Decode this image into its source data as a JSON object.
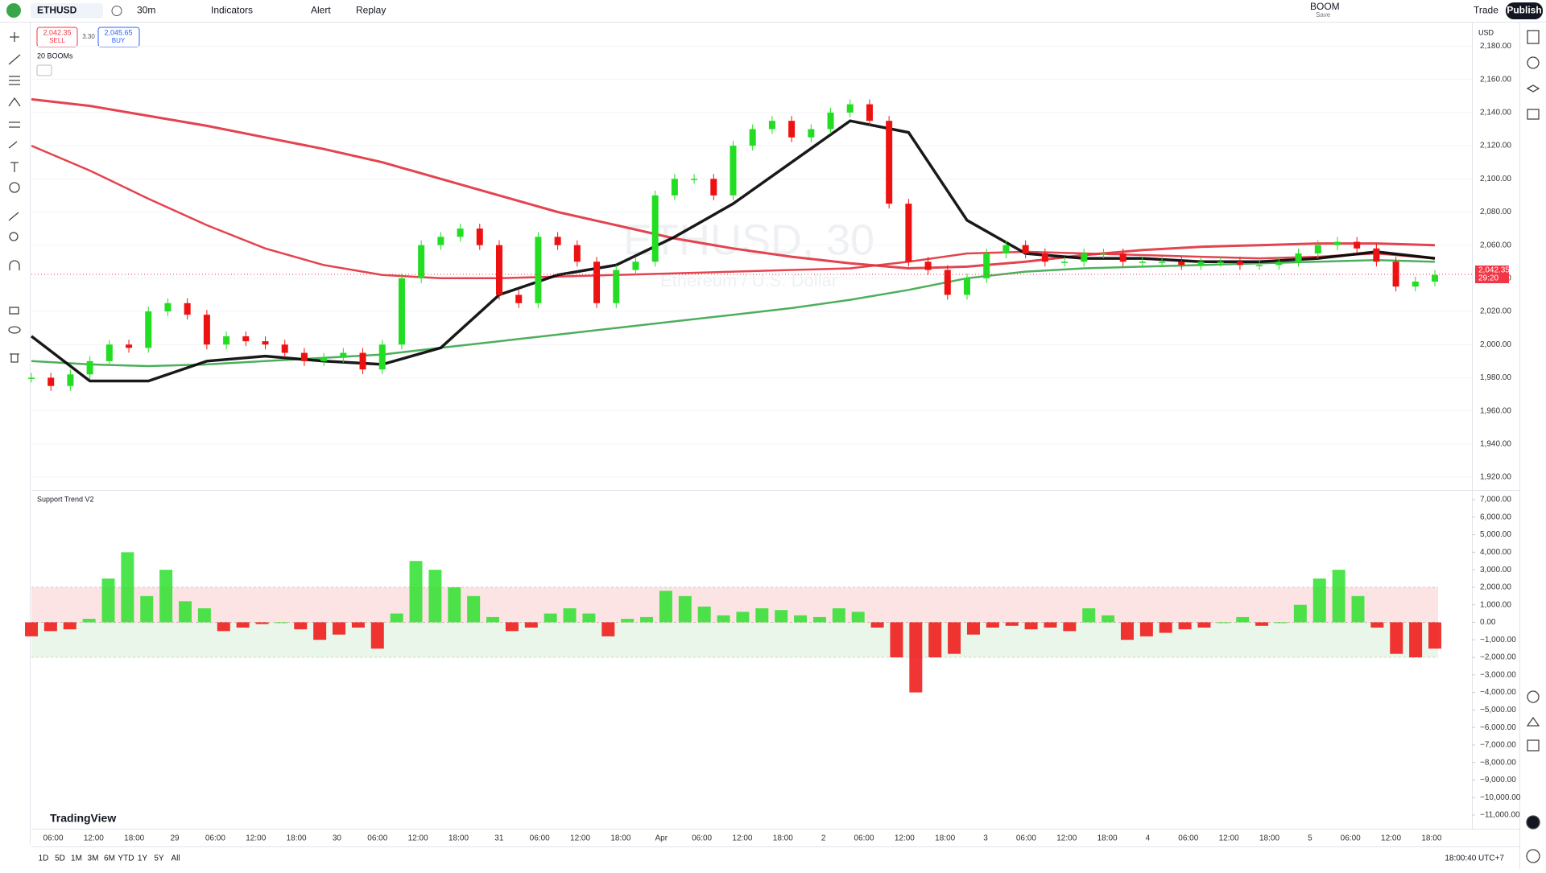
{
  "toolbar": {
    "symbol": "ETHUSD",
    "interval": "30m",
    "indicators": "Indicators",
    "alert": "Alert",
    "replay": "Replay",
    "layout": "BOOM",
    "layout_status": "Save",
    "trade": "Trade",
    "publish": "Publish"
  },
  "order_panel": {
    "sell_price": "2,042.35",
    "sell": "SELL",
    "spread": "3.30",
    "buy_price": "2,045.65",
    "buy": "BUY",
    "indicator_legend": "20 BOOMs"
  },
  "chart": {
    "watermark_symbol": "ETHUSD, 30",
    "watermark_name": "Ethereum / U.S. Dollar",
    "currency": "USD",
    "ylim": [
      1920,
      2180
    ],
    "yticks": [
      {
        "value": 2180,
        "label": "2,180.00"
      },
      {
        "value": 2160,
        "label": "2,160.00"
      },
      {
        "value": 2140,
        "label": "2,140.00"
      },
      {
        "value": 2120,
        "label": "2,120.00"
      },
      {
        "value": 2100,
        "label": "2,100.00"
      },
      {
        "value": 2080,
        "label": "2,080.00"
      },
      {
        "value": 2060,
        "label": "2,060.00"
      },
      {
        "value": 2040,
        "label": "2,040.00"
      },
      {
        "value": 2020,
        "label": "2,020.00"
      },
      {
        "value": 2000,
        "label": "2,000.00"
      },
      {
        "value": 1980,
        "label": "1,980.00"
      },
      {
        "value": 1960,
        "label": "1,960.00"
      },
      {
        "value": 1940,
        "label": "1,940.00"
      },
      {
        "value": 1920,
        "label": "1,920.00"
      }
    ],
    "last_price": {
      "value": 2042.35,
      "label": "2,042.35"
    },
    "countdown": "29:20",
    "candles": {
      "up_color": "#22dd22",
      "down_color": "#ee1111",
      "values": [
        1980,
        1975,
        1982,
        1990,
        2000,
        1998,
        2020,
        2025,
        2018,
        2000,
        2005,
        2002,
        2000,
        1995,
        1990,
        1992,
        1995,
        1985,
        2000,
        2040,
        2060,
        2065,
        2070,
        2060,
        2030,
        2025,
        2065,
        2060,
        2050,
        2025,
        2045,
        2050,
        2090,
        2100,
        2100,
        2090,
        2120,
        2130,
        2135,
        2125,
        2130,
        2140,
        2145,
        2135,
        2085,
        2050,
        2045,
        2030,
        2040,
        2055,
        2060,
        2055,
        2050,
        2050,
        2055,
        2055,
        2050,
        2050,
        2050,
        2048,
        2050,
        2050,
        2048,
        2048,
        2050,
        2055,
        2060,
        2062,
        2058,
        2050,
        2035,
        2038,
        2042
      ]
    },
    "lines": [
      {
        "color": "#e0303c",
        "width": 3,
        "values": [
          2148,
          2144,
          2138,
          2132,
          2125,
          2118,
          2110,
          2100,
          2090,
          2080,
          2072,
          2064,
          2058,
          2053,
          2049,
          2046,
          2047,
          2050,
          2054,
          2057,
          2059,
          2060,
          2061,
          2061,
          2060
        ]
      },
      {
        "color": "#e0303c",
        "width": 2.5,
        "values": [
          2120,
          2105,
          2088,
          2072,
          2058,
          2048,
          2042,
          2040,
          2040,
          2041,
          2042,
          2043,
          2044,
          2045,
          2046,
          2050,
          2055,
          2056,
          2055,
          2054,
          2053,
          2052,
          2053,
          2055,
          2052
        ]
      },
      {
        "color": "#3aa64a",
        "width": 2.5,
        "values": [
          1990,
          1988,
          1987,
          1988,
          1990,
          1992,
          1994,
          1998,
          2002,
          2006,
          2010,
          2014,
          2018,
          2022,
          2027,
          2033,
          2040,
          2044,
          2046,
          2047,
          2048,
          2049,
          2050,
          2051,
          2050
        ]
      },
      {
        "color": "#000000",
        "width": 3.5,
        "values": [
          2005,
          1978,
          1978,
          1990,
          1993,
          1990,
          1988,
          1998,
          2030,
          2042,
          2048,
          2065,
          2085,
          2110,
          2135,
          2128,
          2075,
          2055,
          2052,
          2052,
          2050,
          2050,
          2052,
          2056,
          2052
        ]
      }
    ],
    "time_labels": [
      "06:00",
      "12:00",
      "18:00",
      "29",
      "06:00",
      "12:00",
      "18:00",
      "30",
      "06:00",
      "12:00",
      "18:00",
      "31",
      "06:00",
      "12:00",
      "18:00",
      "Apr",
      "06:00",
      "12:00",
      "18:00",
      "2",
      "06:00",
      "12:00",
      "18:00",
      "3",
      "06:00",
      "12:00",
      "18:00",
      "4",
      "06:00",
      "12:00",
      "18:00",
      "5",
      "06:00",
      "12:00",
      "18:00"
    ],
    "oscillator": {
      "name": "Support Trend V2",
      "ylim": [
        -11000,
        7000
      ],
      "yticks": [
        {
          "value": 7000,
          "label": "7,000.00"
        },
        {
          "value": 6000,
          "label": "6,000.00"
        },
        {
          "value": 5000,
          "label": "5,000.00"
        },
        {
          "value": 4000,
          "label": "4,000.00"
        },
        {
          "value": 3000,
          "label": "3,000.00"
        },
        {
          "value": 2000,
          "label": "2,000.00"
        },
        {
          "value": 1000,
          "label": "1,000.00"
        },
        {
          "value": 0,
          "label": "0.00"
        },
        {
          "value": -1000,
          "label": "−1,000.00"
        },
        {
          "value": -2000,
          "label": "−2,000.00"
        },
        {
          "value": -3000,
          "label": "−3,000.00"
        },
        {
          "value": -4000,
          "label": "−4,000.00"
        },
        {
          "value": -5000,
          "label": "−5,000.00"
        },
        {
          "value": -6000,
          "label": "−6,000.00"
        },
        {
          "value": -7000,
          "label": "−7,000.00"
        },
        {
          "value": -8000,
          "label": "−8,000.00"
        },
        {
          "value": -9000,
          "label": "−9,000.00"
        },
        {
          "value": -10000,
          "label": "−10,000.00"
        },
        {
          "value": -11000,
          "label": "−11,000.00"
        }
      ],
      "zones": [
        {
          "from": 0,
          "to": 2000,
          "color": "#fde4e4"
        },
        {
          "from": -2000,
          "to": 0,
          "color": "#e9f6e9"
        }
      ],
      "up_color": "#2ee02e",
      "down_color": "#ee1111",
      "values": [
        -800,
        -500,
        -400,
        200,
        2500,
        4000,
        1500,
        3000,
        1200,
        800,
        -500,
        -300,
        -100,
        0,
        -400,
        -1000,
        -700,
        -300,
        -1500,
        500,
        3500,
        3000,
        2000,
        1500,
        300,
        -500,
        -300,
        500,
        800,
        500,
        -800,
        200,
        300,
        1800,
        1500,
        900,
        400,
        600,
        800,
        700,
        400,
        300,
        800,
        600,
        -300,
        -2000,
        -4000,
        -2000,
        -1800,
        -700,
        -300,
        -200,
        -400,
        -300,
        -500,
        800,
        400,
        -1000,
        -800,
        -600,
        -400,
        -300,
        0,
        300,
        -200,
        0,
        1000,
        2500,
        3000,
        1500,
        -300,
        -1800,
        -2000,
        -1500
      ]
    }
  },
  "footer": {
    "logo": "TradingView",
    "ranges": [
      "1D",
      "5D",
      "1M",
      "3M",
      "6M",
      "YTD",
      "1Y",
      "5Y",
      "All"
    ],
    "clock": "18:00:40 UTC+7"
  }
}
